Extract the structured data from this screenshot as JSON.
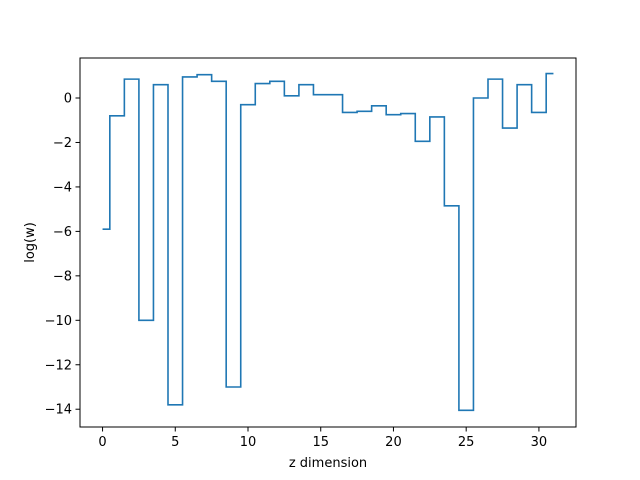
{
  "chart_data": {
    "type": "line",
    "step": "mid",
    "title": "",
    "xlabel": "z dimension",
    "ylabel": "log(w)",
    "xlim": [
      -1.55,
      32.55
    ],
    "ylim": [
      -14.8,
      1.8
    ],
    "xticks": [
      0,
      5,
      10,
      15,
      20,
      25,
      30
    ],
    "xtick_labels": [
      "0",
      "5",
      "10",
      "15",
      "20",
      "25",
      "30"
    ],
    "yticks": [
      -14,
      -12,
      -10,
      -8,
      -6,
      -4,
      -2,
      0
    ],
    "ytick_labels": [
      "−14",
      "−12",
      "−10",
      "−8",
      "−6",
      "−4",
      "−2",
      "0"
    ],
    "grid": false,
    "series": [
      {
        "color": "#1f77b4",
        "x": [
          0,
          1,
          2,
          3,
          4,
          5,
          6,
          7,
          8,
          9,
          10,
          11,
          12,
          13,
          14,
          15,
          16,
          17,
          18,
          19,
          20,
          21,
          22,
          23,
          24,
          25,
          26,
          27,
          28,
          29,
          30,
          31
        ],
        "values": [
          -5.9,
          -0.8,
          0.85,
          -10.0,
          0.6,
          -13.8,
          0.95,
          1.05,
          0.75,
          -13.0,
          -0.3,
          0.65,
          0.75,
          0.1,
          0.6,
          0.15,
          0.15,
          -0.65,
          -0.6,
          -0.35,
          -0.75,
          -0.7,
          -1.95,
          -0.85,
          -4.85,
          -14.05,
          0.0,
          0.85,
          -1.35,
          0.6,
          -0.65,
          1.1
        ]
      }
    ]
  }
}
